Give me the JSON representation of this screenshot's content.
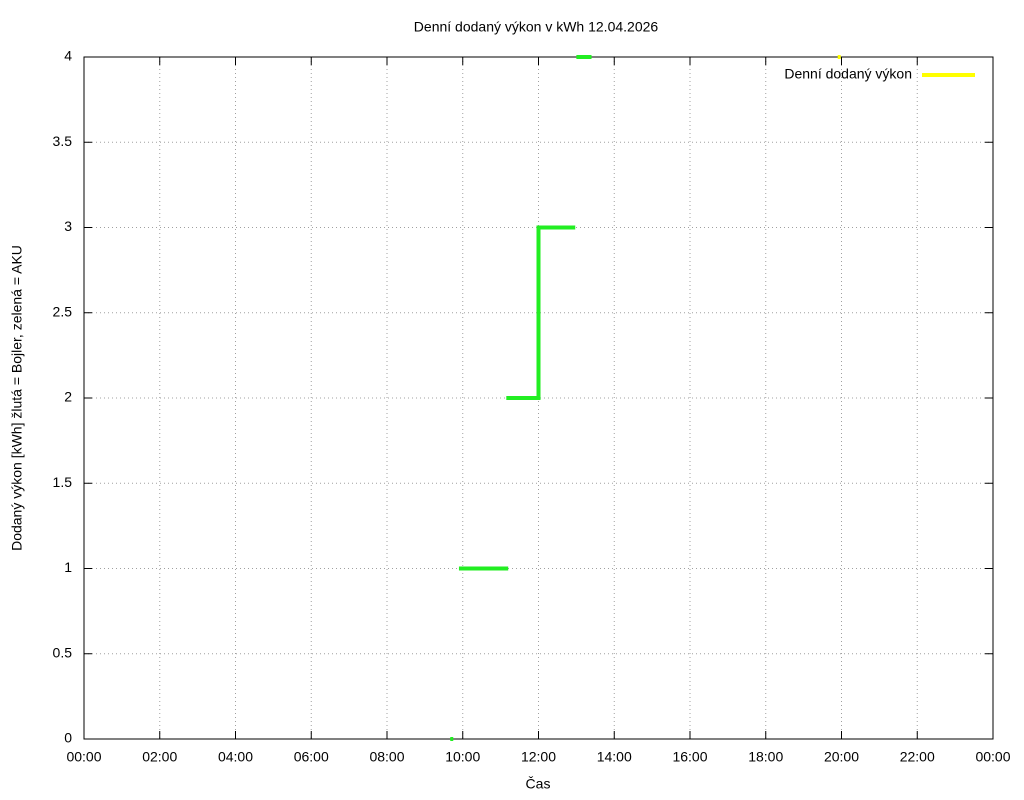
{
  "chart_data": {
    "type": "line",
    "title": "Denní dodaný výkon v kWh 12.04.2026",
    "xlabel": "Čas",
    "ylabel": "Dodaný výkon [kWh]  žlutá = Bojler, zelená = AKU",
    "xlim": [
      0,
      24
    ],
    "xticks": [
      {
        "value": 0,
        "label": "00:00"
      },
      {
        "value": 2,
        "label": "02:00"
      },
      {
        "value": 4,
        "label": "04:00"
      },
      {
        "value": 6,
        "label": "06:00"
      },
      {
        "value": 8,
        "label": "08:00"
      },
      {
        "value": 10,
        "label": "10:00"
      },
      {
        "value": 12,
        "label": "12:00"
      },
      {
        "value": 14,
        "label": "14:00"
      },
      {
        "value": 16,
        "label": "16:00"
      },
      {
        "value": 18,
        "label": "18:00"
      },
      {
        "value": 20,
        "label": "20:00"
      },
      {
        "value": 22,
        "label": "22:00"
      },
      {
        "value": 24,
        "label": "00:00"
      }
    ],
    "ylim": [
      0,
      4
    ],
    "yticks": [
      0,
      0.5,
      1,
      1.5,
      2,
      2.5,
      3,
      3.5,
      4
    ],
    "grid": true,
    "legend": "top-right",
    "series": [
      {
        "color": "#22ee22",
        "x": [
          9.67,
          9.67,
          9.9,
          11.2,
          11.2,
          11.15,
          12.0,
          12.0,
          12.97,
          12.97,
          13.0,
          13.4
        ],
        "values": [
          0,
          null,
          1,
          1,
          null,
          2,
          2,
          3,
          3,
          null,
          4,
          4
        ]
      },
      {
        "name": "Denní dodaný výkon",
        "color": "#ffff00",
        "x": [
          19.9
        ],
        "values": [
          4
        ]
      }
    ]
  }
}
